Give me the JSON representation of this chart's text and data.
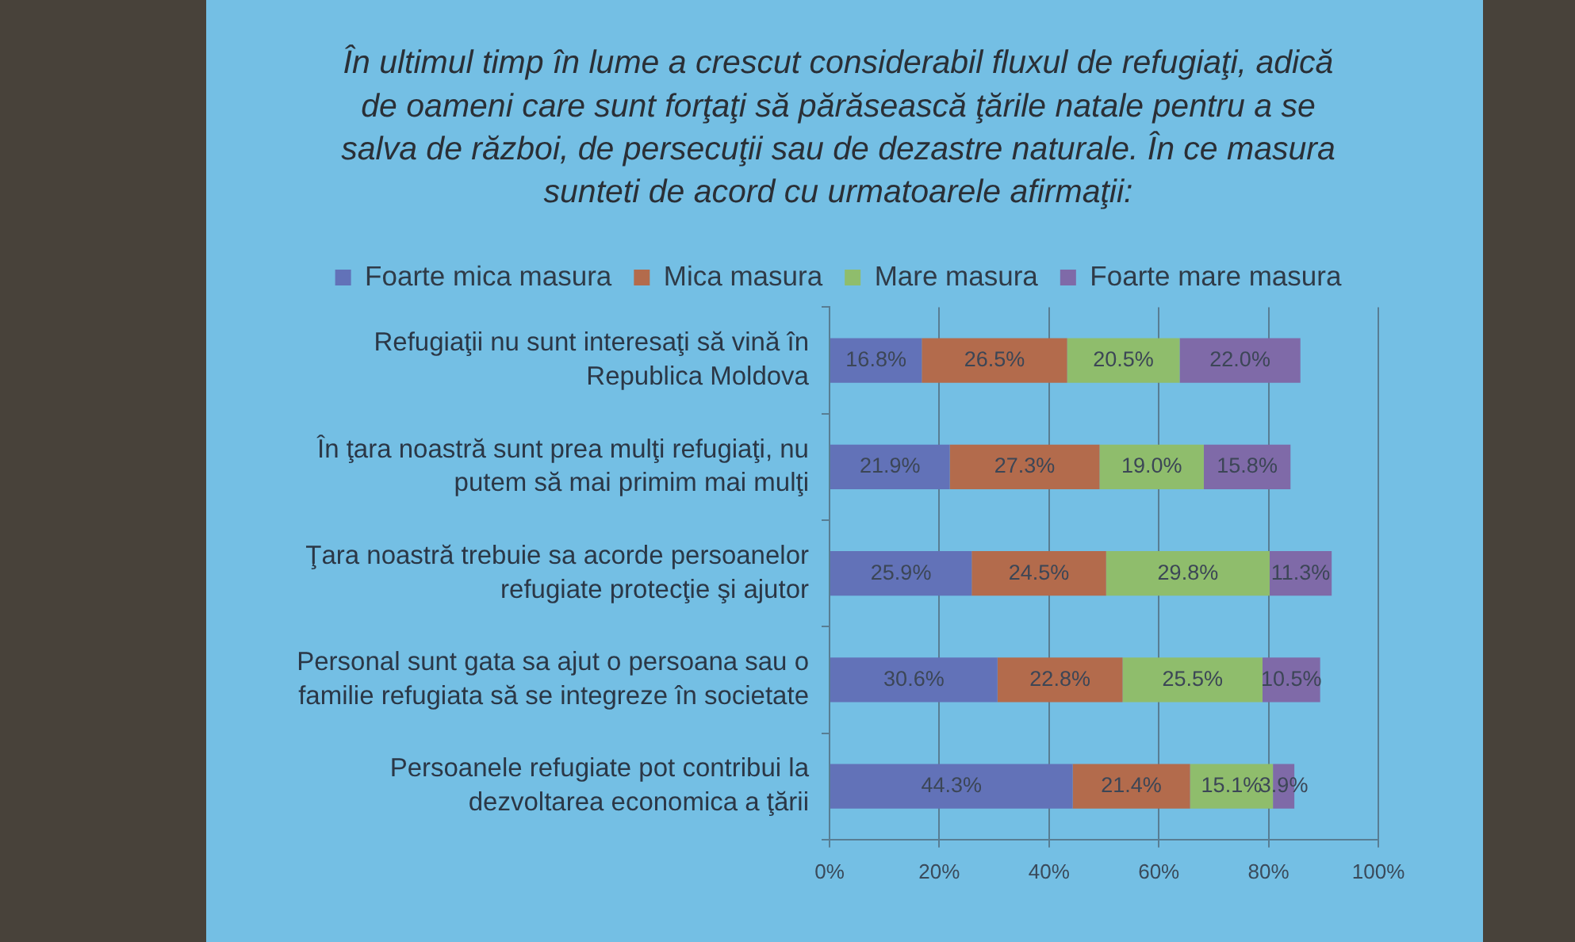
{
  "chart_data": {
    "type": "bar",
    "orientation": "horizontal",
    "stacked": true,
    "title": "În ultimul timp în lume a crescut considerabil fluxul de refugiaţi, adică de oameni care sunt forţaţi să părăsească ţările natale pentru a se salva de război, de persecuţii sau de dezastre naturale. În ce masura sunteti de acord cu urmatoarele afirmaţii:",
    "categories": [
      "Refugiaţii nu sunt interesaţi să vină în Republica Moldova",
      "În ţara noastră sunt prea mulţi refugiaţi, nu putem să mai primim mai mulţi",
      "Ţara noastră trebuie sa acorde persoanelor refugiate protecţie şi ajutor",
      "Personal sunt gata sa ajut o persoana sau o familie refugiata să se integreze în societate",
      "Persoanele refugiate pot contribui la dezvoltarea economica a ţării"
    ],
    "series": [
      {
        "name": "Foarte mica masura",
        "color": "#6272b8",
        "values": [
          16.8,
          21.9,
          25.9,
          30.6,
          44.3
        ],
        "value_labels": [
          "16.8%",
          "21.9%",
          "25.9%",
          "30.6%",
          "44.3%"
        ]
      },
      {
        "name": "Mica masura",
        "color": "#b36b4c",
        "values": [
          26.5,
          27.3,
          24.5,
          22.8,
          21.4
        ],
        "value_labels": [
          "26.5%",
          "27.3%",
          "24.5%",
          "22.8%",
          "21.4%"
        ]
      },
      {
        "name": "Mare masura",
        "color": "#8fbd6c",
        "values": [
          20.5,
          19.0,
          29.8,
          25.5,
          15.1
        ],
        "value_labels": [
          "20.5%",
          "19.0%",
          "29.8%",
          "25.5%",
          "15.1%"
        ]
      },
      {
        "name": "Foarte mare masura",
        "color": "#7f6aa8",
        "values": [
          22.0,
          15.8,
          11.3,
          10.5,
          3.9
        ],
        "value_labels": [
          "22.0%",
          "15.8%",
          "11.3%",
          "10.5%",
          "3.9%"
        ]
      }
    ],
    "xlim": [
      0,
      100
    ],
    "xticks": [
      {
        "value": 0,
        "label": "0%"
      },
      {
        "value": 20,
        "label": "20%"
      },
      {
        "value": 40,
        "label": "40%"
      },
      {
        "value": 60,
        "label": "60%"
      },
      {
        "value": 80,
        "label": "80%"
      },
      {
        "value": 100,
        "label": "100%"
      }
    ],
    "grid": "x",
    "legend": "top"
  }
}
